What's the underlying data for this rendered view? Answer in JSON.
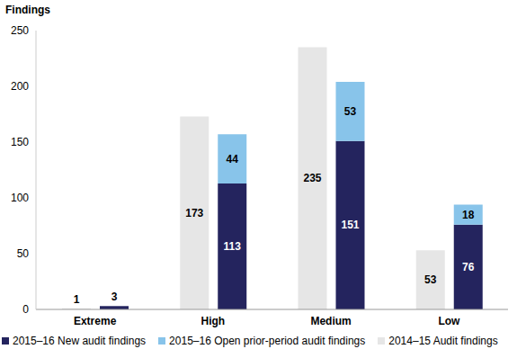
{
  "chart_data": {
    "type": "bar",
    "y_label": "Findings",
    "categories": [
      "Extreme",
      "High",
      "Medium",
      "Low"
    ],
    "series": [
      {
        "name": "2015–16 New audit findings",
        "color": "#24245e",
        "stacked": true,
        "values": [
          3,
          113,
          151,
          76
        ]
      },
      {
        "name": "2015–16 Open prior-period audit findings",
        "color": "#88c4ea",
        "stacked": true,
        "values": [
          null,
          44,
          53,
          18
        ]
      },
      {
        "name": "2014–15 Audit findings",
        "color": "#e6e6e6",
        "stacked": false,
        "values": [
          1,
          173,
          235,
          53
        ]
      }
    ],
    "ylim": [
      0,
      250
    ],
    "yticks": [
      0,
      50,
      100,
      150,
      200,
      250
    ],
    "grid": false,
    "legend": "bottom",
    "data_labels": true
  }
}
